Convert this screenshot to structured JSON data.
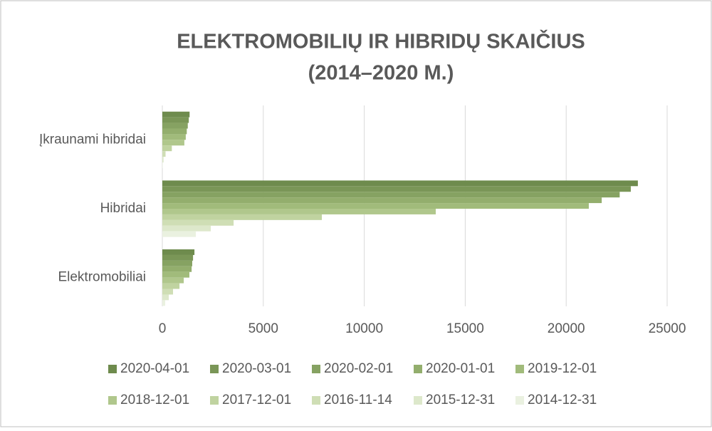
{
  "chart_data": {
    "type": "bar",
    "orientation": "horizontal",
    "title": "ELEKTROMOBILIŲ IR HIBRIDŲ SKAIČIUS",
    "subtitle": "(2014–2020 M.)",
    "categories": [
      "Įkraunami hibridai",
      "Hibridai",
      "Elektromobiliai"
    ],
    "series": [
      {
        "name": "2020-04-01",
        "color": "#6e8b4d",
        "values": [
          1350,
          23550,
          1590
        ]
      },
      {
        "name": "2020-03-01",
        "color": "#7a9657",
        "values": [
          1310,
          23200,
          1520
        ]
      },
      {
        "name": "2020-02-01",
        "color": "#86a262",
        "values": [
          1260,
          22650,
          1480
        ]
      },
      {
        "name": "2020-01-01",
        "color": "#93ae6d",
        "values": [
          1210,
          21760,
          1450
        ]
      },
      {
        "name": "2019-12-01",
        "color": "#a1bb7b",
        "values": [
          1160,
          21120,
          1340
        ]
      },
      {
        "name": "2018-12-01",
        "color": "#b0c78c",
        "values": [
          1090,
          13540,
          1060
        ]
      },
      {
        "name": "2017-12-01",
        "color": "#c0d3a0",
        "values": [
          470,
          7900,
          850
        ]
      },
      {
        "name": "2016-11-14",
        "color": "#cfdeb5",
        "values": [
          160,
          3530,
          530
        ]
      },
      {
        "name": "2015-12-31",
        "color": "#dde8cb",
        "values": [
          60,
          2400,
          320
        ]
      },
      {
        "name": "2014-12-31",
        "color": "#eaf1e0",
        "values": [
          20,
          1660,
          140
        ]
      }
    ],
    "xlim": [
      0,
      25000
    ],
    "xticks": [
      0,
      5000,
      10000,
      15000,
      20000,
      25000
    ],
    "grid": true
  }
}
